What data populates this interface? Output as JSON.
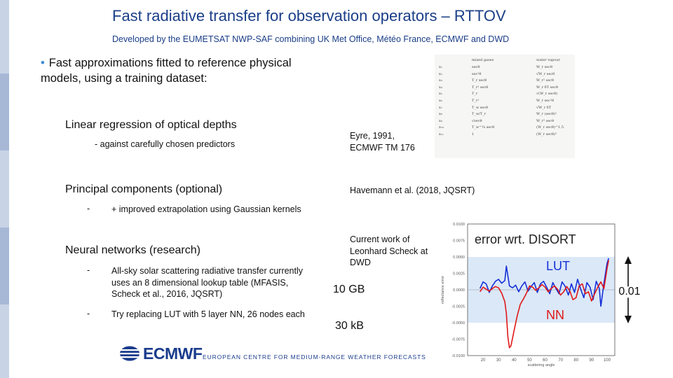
{
  "slide": {
    "title": "Fast radiative transfer for observation operators – RTTOV",
    "subtitle": "Developed by the EUMETSAT NWP-SAF combining UK Met Office, Météo France, ECMWF and DWD",
    "bullet_line1": "Fast approximations fitted to reference physical",
    "bullet_line2": "models, using a training dataset:",
    "bullet_symbol": "•",
    "sections": {
      "linear": {
        "heading": "Linear regression of optical depths",
        "detail": "- against carefully chosen predictors",
        "ref_line1": "Eyre, 1991,",
        "ref_line2": "ECMWF TM 176"
      },
      "pca": {
        "heading": "Principal components (optional)",
        "dash": "-",
        "detail": "+ improved extrapolation using Gaussian kernels",
        "ref": "Havemann et al. (2018, JQSRT)"
      },
      "nn": {
        "heading": "Neural networks (research)",
        "dash": "-",
        "item1_line1": "All-sky solar scattering radiative transfer currently",
        "item1_line2": "uses an 8 dimensional lookup table (MFASIS,",
        "item1_line3": "Scheck et al., 2016, JQSRT)",
        "item2": "Try replacing LUT with 5 layer NN, 26 nodes each",
        "ref_line1": "Current work of",
        "ref_line2": "Leonhard Scheck at",
        "ref_line3": "DWD",
        "size_lut": "10 GB",
        "size_nn": "30 kB"
      }
    },
    "logo_text": "ECMWF",
    "footer": "EUROPEAN CENTRE FOR MEDIUM-RANGE WEATHER FORECASTS"
  },
  "predictor_table": {
    "col1": [
      "x₁",
      "x₂",
      "x₃",
      "x₄",
      "x₅",
      "x₆",
      "x₇",
      "x₈",
      "x₉",
      "x₁₀",
      "x₁₁"
    ],
    "col2_header": "mixed gases",
    "col2": [
      "secθ",
      "sec²θ",
      "T_r secθ",
      "T_r² secθ",
      "T_r",
      "T_r²",
      "T_w secθ",
      "T_w/T_r",
      "√secθ",
      "T_w^¼ secθ",
      "1"
    ],
    "col3_header": "water vapour",
    "col3": [
      "W_r secθ",
      "√W_r secθ",
      "W_r² secθ",
      "W_r δT secθ",
      "√(W_r secθ)",
      "W_r sec²θ",
      "√W_r δT",
      "W_r (secθ)²",
      "W_r³ secθ",
      "(W_r secθ)^1.5",
      "(W_r secθ)²"
    ]
  },
  "chart_data": {
    "type": "line",
    "title": "error wrt. DISORT",
    "xlabel": "scattering angle",
    "ylabel": "reflectance error",
    "xlim": [
      10,
      105
    ],
    "ylim": [
      -0.01,
      0.01
    ],
    "xticks": [
      20,
      30,
      40,
      50,
      60,
      70,
      80,
      90,
      100
    ],
    "yticks": [
      "0.0100",
      "0.0075",
      "0.0050",
      "0.0025",
      "0.0000",
      "-0.0025",
      "-0.0050",
      "-0.0075",
      "-0.0100"
    ],
    "shaded_band": [
      -0.005,
      0.005
    ],
    "annotation": "0.01",
    "series": [
      {
        "name": "LUT",
        "color": "#1530d8",
        "points": [
          [
            18,
            0.0002
          ],
          [
            20,
            0.0012
          ],
          [
            22,
            0.0009
          ],
          [
            24,
            -0.0004
          ],
          [
            26,
            0.0006
          ],
          [
            28,
            0.0013
          ],
          [
            30,
            0.0016
          ],
          [
            32,
            0.001
          ],
          [
            34,
            0.0014
          ],
          [
            35,
            0.0036
          ],
          [
            37,
            0.0006
          ],
          [
            39,
            0.0003
          ],
          [
            41,
            0.0007
          ],
          [
            43,
            -0.0003
          ],
          [
            45,
            0.0006
          ],
          [
            47,
            0.0012
          ],
          [
            49,
            -0.0002
          ],
          [
            51,
            0.0005
          ],
          [
            53,
            0.0011
          ],
          [
            55,
            -0.0004
          ],
          [
            57,
            0.0009
          ],
          [
            59,
            0.0013
          ],
          [
            61,
            0.0004
          ],
          [
            63,
            -0.0006
          ],
          [
            65,
            0.0011
          ],
          [
            67,
            0.0002
          ],
          [
            69,
            -0.0006
          ],
          [
            71,
            0.0012
          ],
          [
            73,
            0.0005
          ],
          [
            75,
            -0.0008
          ],
          [
            77,
            0.0009
          ],
          [
            79,
            -0.0004
          ],
          [
            81,
            0.0016
          ],
          [
            83,
            0.0001
          ],
          [
            85,
            -0.0012
          ],
          [
            87,
            0.0011
          ],
          [
            89,
            0.0004
          ],
          [
            91,
            -0.0015
          ],
          [
            93,
            0.0013
          ],
          [
            95,
            0.0002
          ],
          [
            96,
            -0.0025
          ],
          [
            98,
            0.001
          ],
          [
            100,
            0.004
          ],
          [
            101,
            0.0048
          ]
        ]
      },
      {
        "name": "NN",
        "color": "#e01818",
        "points": [
          [
            18,
            -0.0003
          ],
          [
            20,
            0.0004
          ],
          [
            22,
            0.0001
          ],
          [
            24,
            -0.0002
          ],
          [
            26,
            0.0002
          ],
          [
            28,
            0.0005
          ],
          [
            30,
            0.0003
          ],
          [
            32,
            -0.0005
          ],
          [
            34,
            -0.0018
          ],
          [
            35,
            -0.0036
          ],
          [
            36,
            -0.0072
          ],
          [
            37,
            -0.0088
          ],
          [
            38,
            -0.0085
          ],
          [
            40,
            -0.0062
          ],
          [
            42,
            -0.004
          ],
          [
            44,
            -0.0022
          ],
          [
            46,
            -0.0014
          ],
          [
            48,
            -0.0005
          ],
          [
            50,
            0.0006
          ],
          [
            52,
            0.0004
          ],
          [
            54,
            -0.0001
          ],
          [
            56,
            0.0003
          ],
          [
            58,
            0.0008
          ],
          [
            60,
            0.0004
          ],
          [
            62,
            -0.0003
          ],
          [
            64,
            0.0002
          ],
          [
            66,
            0.0006
          ],
          [
            68,
            0.0001
          ],
          [
            70,
            -0.0008
          ],
          [
            72,
            -0.0003
          ],
          [
            74,
            0.0005
          ],
          [
            76,
            -0.0002
          ],
          [
            78,
            -0.0015
          ],
          [
            80,
            -0.0012
          ],
          [
            82,
            0.0006
          ],
          [
            84,
            0.0009
          ],
          [
            86,
            -0.0006
          ],
          [
            88,
            -0.0003
          ],
          [
            90,
            -0.0017
          ],
          [
            92,
            -0.0006
          ],
          [
            94,
            0.0004
          ],
          [
            96,
            0.0012
          ],
          [
            98,
            0.0002
          ],
          [
            100,
            0.0032
          ],
          [
            101,
            0.0045
          ]
        ]
      }
    ],
    "colors": {
      "band": "#dbe8f8",
      "axis": "#555555",
      "annotation_title": "#222222"
    }
  }
}
